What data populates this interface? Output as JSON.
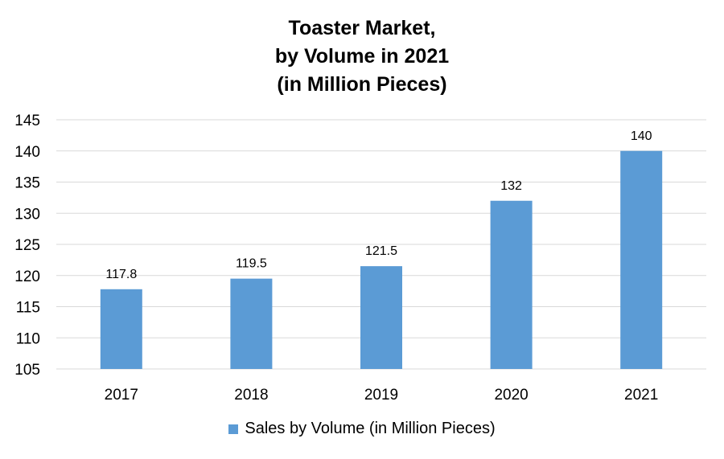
{
  "chart_data": {
    "type": "bar",
    "title_lines": [
      "Toaster Market,",
      "by Volume in 2021",
      "(in Million Pieces)"
    ],
    "categories": [
      "2017",
      "2018",
      "2019",
      "2020",
      "2021"
    ],
    "series": [
      {
        "name": "Sales by Volume (in Million Pieces)",
        "values": [
          117.8,
          119.5,
          121.5,
          132,
          140
        ],
        "labels": [
          "117.8",
          "119.5",
          "121.5",
          "132",
          "140"
        ],
        "color": "#5b9bd5"
      }
    ],
    "ylim": [
      105,
      145
    ],
    "yticks": [
      105,
      110,
      115,
      120,
      125,
      130,
      135,
      140,
      145
    ],
    "ytick_labels": [
      "105",
      "110",
      "115",
      "120",
      "125",
      "130",
      "135",
      "140",
      "145"
    ],
    "grid": true,
    "grid_color": "#d9d9d9",
    "legend_position": "bottom"
  }
}
